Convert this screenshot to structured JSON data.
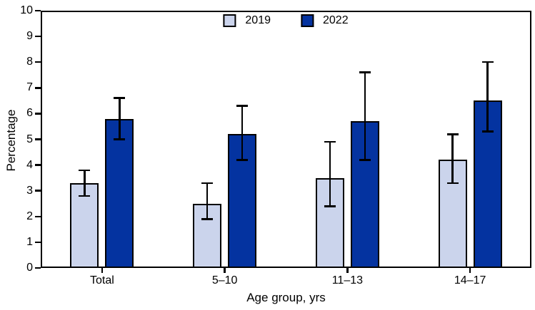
{
  "chart_data": {
    "type": "bar",
    "title": "",
    "xlabel": "Age group, yrs",
    "ylabel": "Percentage",
    "categories": [
      "Total",
      "5–10",
      "11–13",
      "14–17"
    ],
    "ylim": [
      0,
      10
    ],
    "yticks": [
      0,
      1,
      2,
      3,
      4,
      5,
      6,
      7,
      8,
      9,
      10
    ],
    "grid": "off",
    "legend_position": "top-center",
    "error_bars": "95% CI whiskers with caps",
    "series": [
      {
        "name": "2019",
        "color": "#CBD4EC",
        "values": [
          3.3,
          2.5,
          3.5,
          4.2
        ],
        "ci_low": [
          2.8,
          1.9,
          2.4,
          3.3
        ],
        "ci_high": [
          3.8,
          3.3,
          4.9,
          5.2
        ]
      },
      {
        "name": "2022",
        "color": "#0433A0",
        "values": [
          5.8,
          5.2,
          5.7,
          6.5
        ],
        "ci_low": [
          5.0,
          4.2,
          4.2,
          5.3
        ],
        "ci_high": [
          6.6,
          6.3,
          7.6,
          8.0
        ]
      }
    ]
  },
  "colors": {
    "axis": "#000000",
    "background": "#FFFFFF",
    "series_2019": "#CBD4EC",
    "series_2022": "#0433A0"
  }
}
